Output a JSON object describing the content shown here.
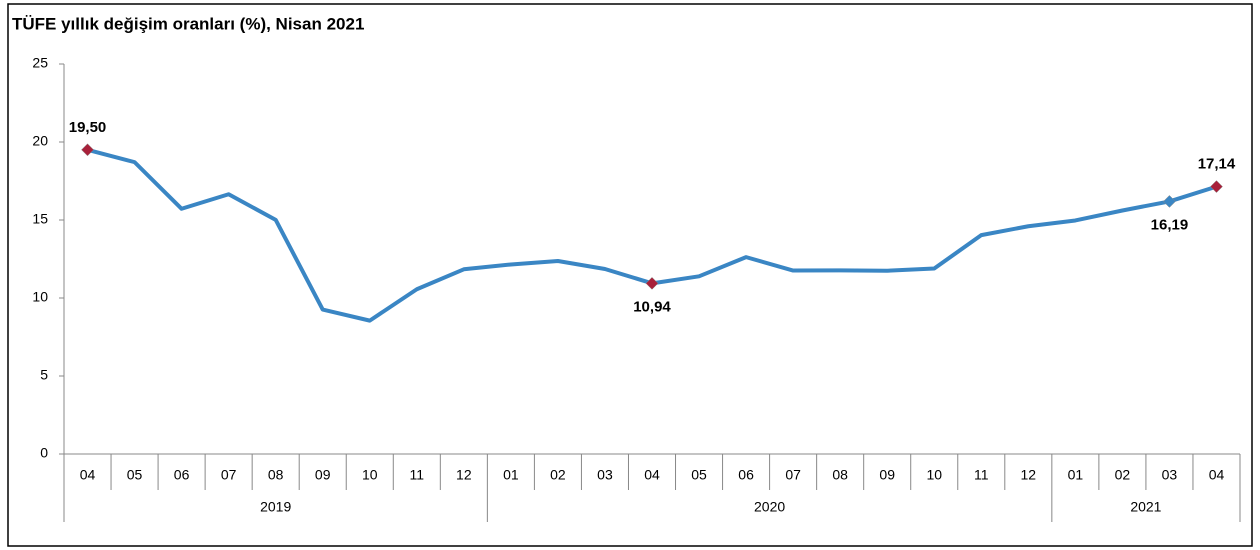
{
  "chart_data": {
    "type": "line",
    "title": "TÜFE yıllık değişim oranları (%), Nisan 2021",
    "categories": [
      "04",
      "05",
      "06",
      "07",
      "08",
      "09",
      "10",
      "11",
      "12",
      "01",
      "02",
      "03",
      "04",
      "05",
      "06",
      "07",
      "08",
      "09",
      "10",
      "11",
      "12",
      "01",
      "02",
      "03",
      "04"
    ],
    "x_groups": [
      {
        "label": "2019",
        "count": 9
      },
      {
        "label": "2020",
        "count": 12
      },
      {
        "label": "2021",
        "count": 4
      }
    ],
    "series": [
      {
        "color": "#3a86c4",
        "values": [
          19.5,
          18.71,
          15.72,
          16.65,
          15.01,
          9.26,
          8.55,
          10.56,
          11.84,
          12.15,
          12.37,
          11.86,
          10.94,
          11.39,
          12.62,
          11.76,
          11.77,
          11.75,
          11.89,
          14.03,
          14.6,
          14.97,
          15.61,
          16.19,
          17.14
        ],
        "value_labels": [
          "19,50",
          null,
          null,
          null,
          null,
          null,
          null,
          null,
          null,
          null,
          null,
          null,
          "10,94",
          null,
          null,
          null,
          null,
          null,
          null,
          null,
          null,
          null,
          null,
          "16,19",
          "17,14"
        ],
        "marker_colors": [
          "#a8203a",
          null,
          null,
          null,
          null,
          null,
          null,
          null,
          null,
          null,
          null,
          null,
          "#a8203a",
          null,
          null,
          null,
          null,
          null,
          null,
          null,
          null,
          null,
          null,
          "#3a86c4",
          "#a8203a"
        ]
      }
    ],
    "ylim": [
      0,
      25
    ],
    "yticks": [
      0,
      5,
      10,
      15,
      20,
      25
    ],
    "grid": false
  }
}
